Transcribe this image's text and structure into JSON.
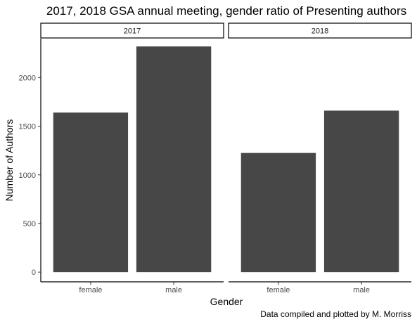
{
  "chart_data": {
    "type": "bar",
    "title": "2017, 2018 GSA annual meeting, gender ratio of Presenting authors",
    "xlabel": "Gender",
    "ylabel": "Number of Authors",
    "caption": "Data compiled and plotted by M. Morriss",
    "categories": [
      "female",
      "male"
    ],
    "ylim": [
      -100,
      2400
    ],
    "yticks": [
      0,
      500,
      1000,
      1500,
      2000
    ],
    "ytick_labels": [
      "0",
      "500",
      "1000",
      "1500",
      "2000"
    ],
    "grid": false,
    "panels": [
      {
        "label": "2017",
        "values": [
          1640,
          2320
        ]
      },
      {
        "label": "2018",
        "values": [
          1225,
          1660
        ]
      }
    ],
    "bar_color": "#474747"
  }
}
